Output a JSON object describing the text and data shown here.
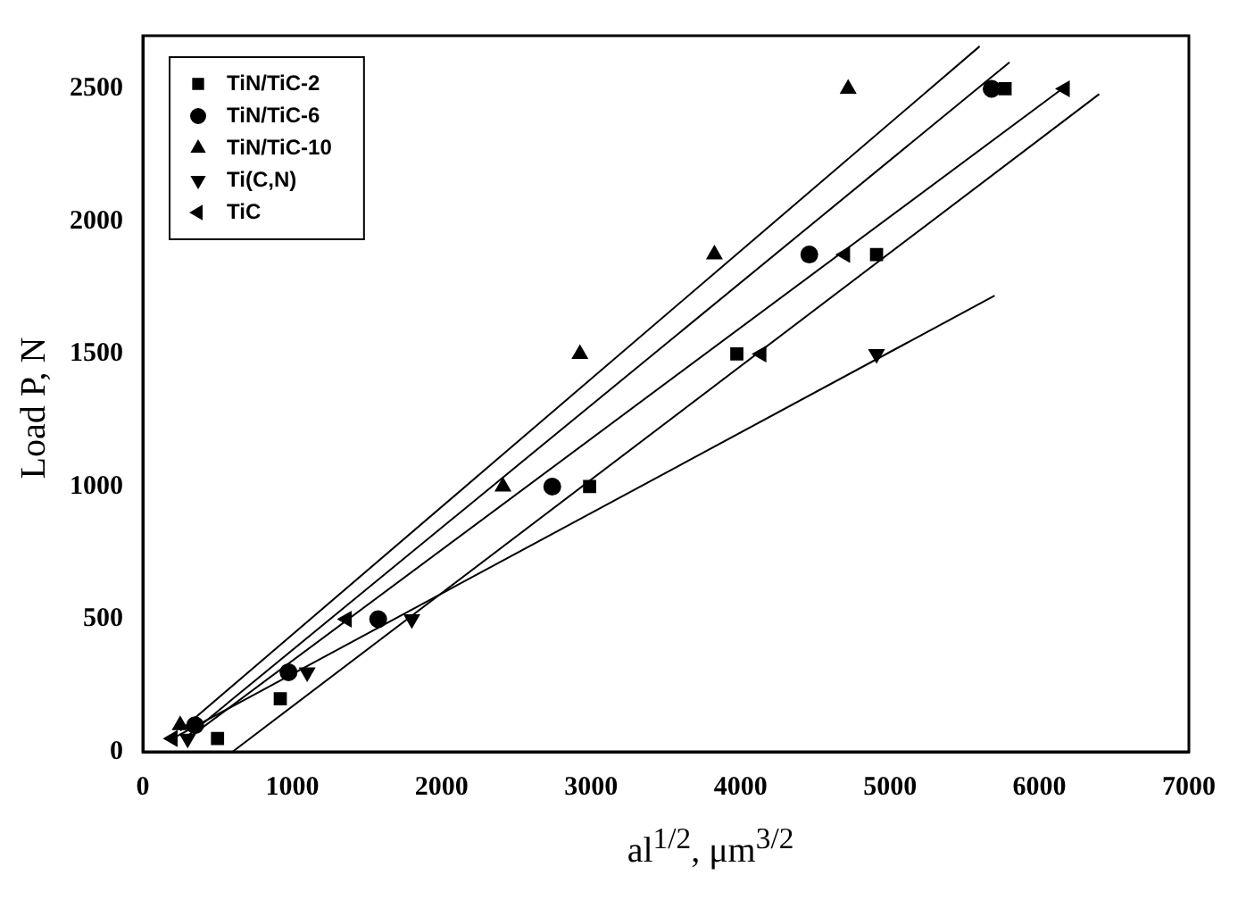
{
  "chart_data": {
    "type": "scatter",
    "xlabel": "al$^{1/2}$, μm$^{3/2}$",
    "ylabel": "Load P, N",
    "xlim": [
      0,
      7000
    ],
    "xticks": [
      0,
      1000,
      2000,
      3000,
      4000,
      5000,
      6000,
      7000
    ],
    "ylim": [
      0,
      2700
    ],
    "yticks": [
      0,
      500,
      1000,
      1500,
      2000,
      2500
    ],
    "grid": false,
    "legend": "top left",
    "series": [
      {
        "name": "TiN/TiC-2",
        "color": "#000000",
        "marker": "square",
        "x": [
          500,
          920,
          2990,
          3975,
          4910,
          5770
        ],
        "values": [
          50,
          200,
          1000,
          1500,
          1875,
          2500
        ]
      },
      {
        "name": "TiN/TiC-6",
        "color": "#000000",
        "marker": "circle",
        "x": [
          350,
          975,
          1575,
          2740,
          3950,
          4460,
          5680
        ],
        "values": [
          100,
          300,
          500,
          1000,
          null,
          1875,
          2500
        ]
      },
      {
        "name": "TiN/TiC-10",
        "color": "#000000",
        "marker": "triangle",
        "x": [
          250,
          2410,
          2925,
          3825,
          4720
        ],
        "values": [
          100,
          1000,
          1500,
          1875,
          2500
        ]
      },
      {
        "name": "Ti(C,N)",
        "color": "#000000",
        "marker": "triangle-down",
        "x": [
          300,
          1100,
          1800,
          4910
        ],
        "values": [
          50,
          300,
          500,
          1500
        ]
      },
      {
        "name": "TiC",
        "color": "#000000",
        "marker": "triangle-left",
        "x": [
          200,
          1365,
          4140,
          4700,
          6170
        ],
        "values": [
          50,
          500,
          1500,
          1875,
          2500
        ]
      },
      {
        "type": "line",
        "color": "#000000",
        "marker": "none",
        "x": [
          250,
          5600
        ],
        "values": [
          80,
          2660
        ]
      },
      {
        "type": "line",
        "color": "#000000",
        "marker": "none",
        "x": [
          300,
          5800
        ],
        "values": [
          60,
          2600
        ]
      },
      {
        "type": "line",
        "color": "#000000",
        "marker": "none",
        "x": [
          600,
          6400
        ],
        "values": [
          0,
          2480
        ]
      },
      {
        "type": "line",
        "color": "#000000",
        "marker": "none",
        "x": [
          300,
          6200
        ],
        "values": [
          50,
          2520
        ]
      },
      {
        "type": "line",
        "color": "#000000",
        "marker": "none",
        "x": [
          200,
          5700
        ],
        "values": [
          50,
          1720
        ]
      }
    ]
  }
}
